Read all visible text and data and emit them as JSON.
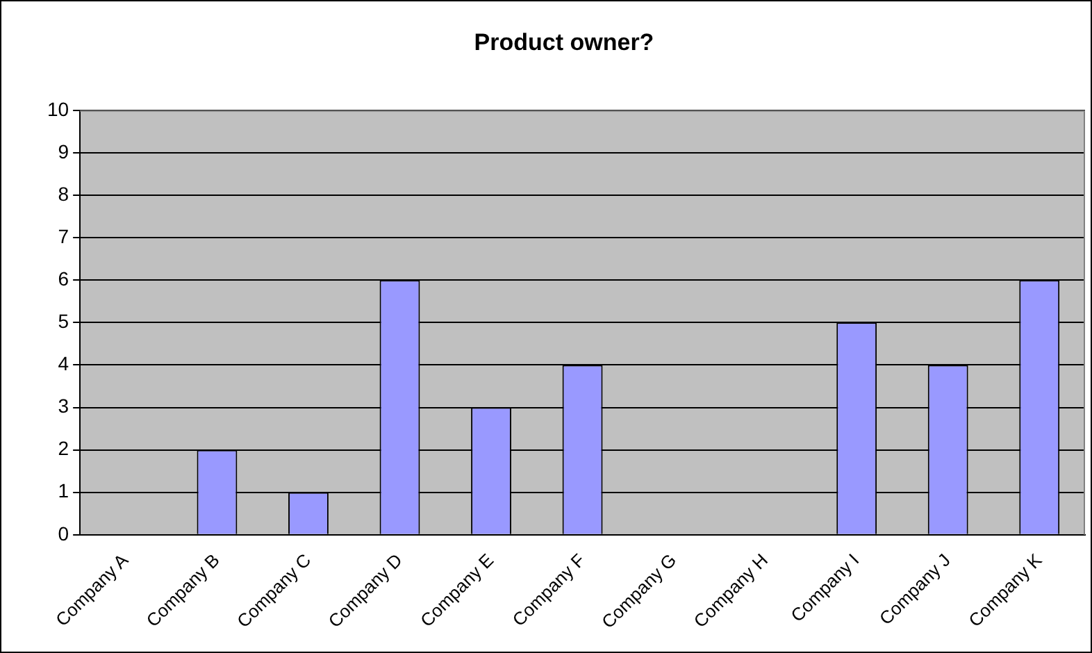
{
  "chart_data": {
    "type": "bar",
    "title": "Product owner?",
    "categories": [
      "Company A",
      "Company B",
      "Company C",
      "Company D",
      "Company E",
      "Company F",
      "Company G",
      "Company H",
      "Company I",
      "Company J",
      "Company K"
    ],
    "values": [
      0,
      2,
      1,
      6,
      3,
      4,
      0,
      0,
      5,
      4,
      6
    ],
    "color": "#9999ff",
    "ylim": [
      0,
      10
    ],
    "yticks": [
      0,
      1,
      2,
      3,
      4,
      5,
      6,
      7,
      8,
      9,
      10
    ],
    "grid": "y",
    "legend": false
  }
}
